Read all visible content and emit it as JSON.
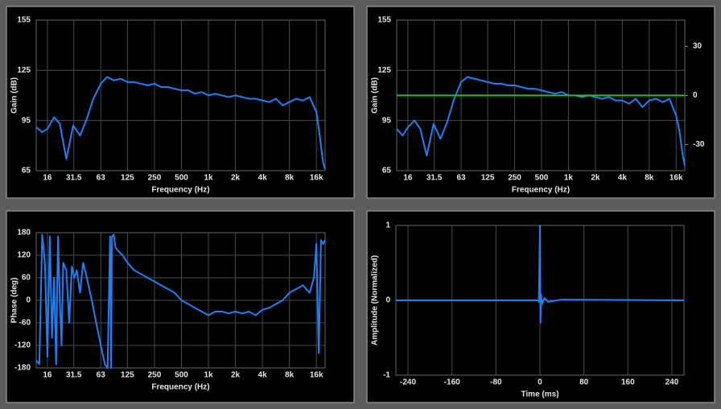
{
  "chart_data": [
    {
      "type": "line",
      "xscale": "log",
      "xlabel": "Frequency (Hz)",
      "ylabel": "Gain (dB)",
      "xlim": [
        12,
        20000
      ],
      "ylim": [
        65,
        155
      ],
      "yticks": [
        65,
        95,
        125,
        155
      ],
      "xticks": [
        16,
        31.5,
        63,
        125,
        250,
        500,
        {
          "value": 1000,
          "label": "1k"
        },
        {
          "value": 2000,
          "label": "2k"
        },
        {
          "value": 4000,
          "label": "4k"
        },
        {
          "value": 8000,
          "label": "8k"
        },
        {
          "value": 16000,
          "label": "16k"
        }
      ],
      "grid": true,
      "x": [
        12,
        14,
        16,
        19,
        22,
        26,
        31,
        37,
        44,
        52,
        63,
        74,
        88,
        105,
        125,
        148,
        177,
        210,
        250,
        297,
        354,
        420,
        500,
        595,
        707,
        841,
        1000,
        1189,
        1414,
        1682,
        2000,
        2378,
        2828,
        3364,
        4000,
        4757,
        5657,
        6727,
        8000,
        9514,
        11314,
        13454,
        16000,
        17500,
        19000,
        20000
      ],
      "series": [
        {
          "color": "#1f7ff5",
          "values": [
            91,
            88,
            90,
            97,
            93,
            72,
            92,
            86,
            96,
            108,
            117,
            121,
            119,
            120,
            118,
            118,
            117,
            116,
            117,
            115,
            115,
            114,
            113,
            113,
            111,
            112,
            110,
            111,
            110,
            109,
            110,
            109,
            108,
            108,
            107,
            106,
            108,
            104,
            106,
            108,
            107,
            109,
            100,
            85,
            70,
            66
          ]
        }
      ]
    },
    {
      "type": "line",
      "xscale": "log",
      "xlabel": "Frequency (Hz)",
      "ylabel": "Gain (dB)",
      "xlim": [
        12,
        20000
      ],
      "ylim": [
        65,
        155
      ],
      "yticks": [
        65,
        95,
        125,
        155
      ],
      "y2lim": [
        -46,
        46
      ],
      "y2ticks": [
        30,
        0,
        -30
      ],
      "xticks": [
        16,
        31.5,
        63,
        125,
        250,
        500,
        {
          "value": 1000,
          "label": "1k"
        },
        {
          "value": 2000,
          "label": "2k"
        },
        {
          "value": 4000,
          "label": "4k"
        },
        {
          "value": 8000,
          "label": "8k"
        },
        {
          "value": 16000,
          "label": "16k"
        }
      ],
      "grid": true,
      "x": [
        12,
        14,
        16,
        19,
        22,
        26,
        31,
        37,
        44,
        52,
        63,
        74,
        88,
        105,
        125,
        148,
        177,
        210,
        250,
        297,
        354,
        420,
        500,
        595,
        707,
        841,
        1000,
        1189,
        1414,
        1682,
        2000,
        2378,
        2828,
        3364,
        4000,
        4757,
        5657,
        6727,
        8000,
        9514,
        11314,
        13454,
        16000,
        17500,
        19000,
        20000
      ],
      "series": [
        {
          "color": "#1f7ff5",
          "values": [
            90,
            86,
            91,
            95,
            90,
            74,
            93,
            84,
            94,
            107,
            118,
            121,
            120,
            119,
            118,
            117,
            117,
            116,
            116,
            115,
            114,
            114,
            113,
            112,
            111,
            112,
            110,
            110,
            109,
            110,
            109,
            108,
            109,
            107,
            107,
            105,
            108,
            103,
            107,
            108,
            106,
            108,
            98,
            88,
            74,
            68
          ]
        },
        {
          "color": "#22c022",
          "axis": "y2",
          "x": [
            12,
            20000
          ],
          "values": [
            0,
            0
          ]
        }
      ]
    },
    {
      "type": "line",
      "xscale": "log",
      "xlabel": "Frequency (Hz)",
      "ylabel": "Phase (deg)",
      "xlim": [
        12,
        20000
      ],
      "ylim": [
        -180,
        180
      ],
      "yticks": [
        -180,
        -120,
        -60,
        0,
        60,
        120,
        180
      ],
      "xticks": [
        16,
        31.5,
        63,
        125,
        250,
        500,
        {
          "value": 1000,
          "label": "1k"
        },
        {
          "value": 2000,
          "label": "2k"
        },
        {
          "value": 4000,
          "label": "4k"
        },
        {
          "value": 8000,
          "label": "8k"
        },
        {
          "value": 16000,
          "label": "16k"
        }
      ],
      "grid": true,
      "x": [
        12,
        13,
        14,
        15,
        16,
        17,
        18,
        19,
        20,
        21,
        22,
        23,
        24,
        26,
        28,
        30,
        32,
        34,
        37,
        40,
        44,
        50,
        56,
        63,
        70,
        75,
        80,
        82,
        84,
        88,
        92,
        100,
        110,
        125,
        148,
        177,
        210,
        250,
        297,
        354,
        420,
        500,
        595,
        707,
        841,
        1000,
        1189,
        1414,
        1682,
        2000,
        2378,
        2828,
        3364,
        4000,
        4757,
        5657,
        6727,
        8000,
        9514,
        11314,
        13454,
        15000,
        16000,
        17000,
        18000,
        19000,
        20000
      ],
      "series": [
        {
          "color": "#1f7ff5",
          "values": [
            -160,
            -170,
            175,
            100,
            -150,
            170,
            -100,
            60,
            -170,
            170,
            0,
            -120,
            100,
            80,
            -60,
            90,
            60,
            80,
            20,
            100,
            60,
            0,
            -60,
            -120,
            -170,
            -180,
            170,
            -180,
            170,
            175,
            140,
            130,
            120,
            100,
            80,
            70,
            60,
            50,
            40,
            30,
            20,
            0,
            -10,
            -20,
            -30,
            -40,
            -30,
            -30,
            -35,
            -30,
            -35,
            -30,
            -40,
            -25,
            -20,
            -10,
            0,
            20,
            30,
            40,
            20,
            60,
            150,
            -140,
            160,
            150,
            160
          ]
        }
      ]
    },
    {
      "type": "line",
      "xlabel": "Time (ms)",
      "ylabel": "Amplitude (Normalized)",
      "xlim": [
        -262,
        262
      ],
      "ylim": [
        -1,
        1
      ],
      "yticks": [
        -1,
        0,
        1
      ],
      "xticks": [
        -240,
        -160,
        -80,
        0,
        80,
        160,
        240
      ],
      "grid": true,
      "x": [
        -262,
        -5,
        -2,
        0,
        1,
        2,
        4,
        8,
        15,
        40,
        262
      ],
      "series": [
        {
          "color": "#1f7ff5",
          "values": [
            0,
            0,
            -0.02,
            1,
            -0.3,
            0.08,
            -0.05,
            0.03,
            -0.02,
            0.01,
            0
          ]
        }
      ]
    }
  ]
}
